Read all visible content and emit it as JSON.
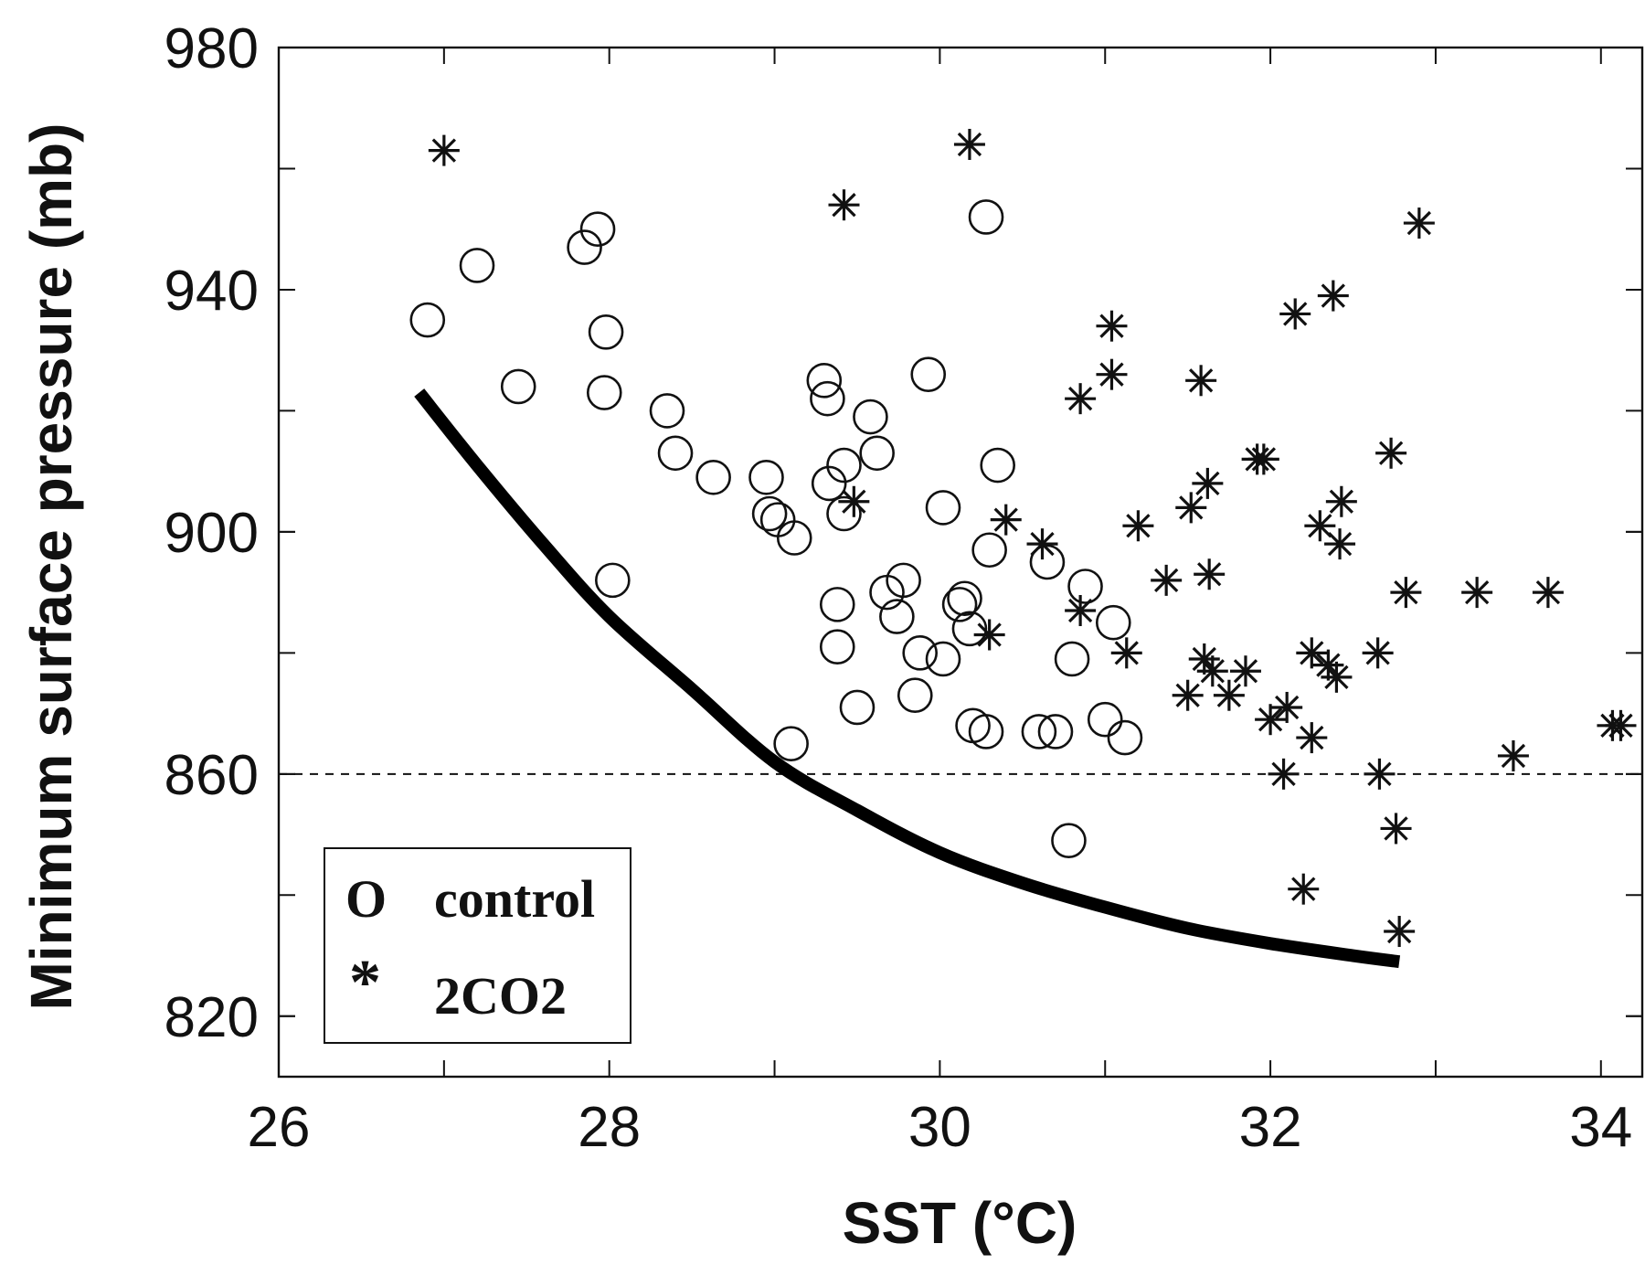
{
  "chart_data": {
    "type": "scatter",
    "xlabel": "SST (°C)",
    "ylabel": "Minimum surface pressure (mb)",
    "xlim": [
      26,
      34.25
    ],
    "ylim": [
      810,
      980
    ],
    "xticks": [
      26,
      28,
      30,
      32,
      34
    ],
    "yticks": [
      820,
      860,
      900,
      940,
      980
    ],
    "grid": false,
    "legend_position": "bottom-left",
    "reference_line": {
      "y": 860,
      "style": "dashed"
    },
    "curve": {
      "style": "thick solid",
      "points": [
        [
          26.85,
          923
        ],
        [
          27.2,
          911
        ],
        [
          27.6,
          898
        ],
        [
          28.0,
          886
        ],
        [
          28.5,
          874
        ],
        [
          29.0,
          862
        ],
        [
          29.5,
          854
        ],
        [
          30.0,
          847
        ],
        [
          30.5,
          842
        ],
        [
          31.0,
          838
        ],
        [
          31.5,
          834.5
        ],
        [
          32.0,
          832
        ],
        [
          32.5,
          830
        ],
        [
          32.78,
          829
        ]
      ]
    },
    "series": [
      {
        "name": "control",
        "legend_symbol": "O",
        "marker": "open-circle",
        "points": [
          [
            26.9,
            935
          ],
          [
            27.2,
            944
          ],
          [
            27.45,
            924
          ],
          [
            27.85,
            947
          ],
          [
            27.93,
            950
          ],
          [
            27.97,
            923
          ],
          [
            27.98,
            933
          ],
          [
            28.02,
            892
          ],
          [
            28.35,
            920
          ],
          [
            28.4,
            913
          ],
          [
            28.63,
            909
          ],
          [
            28.95,
            909
          ],
          [
            28.97,
            903
          ],
          [
            29.02,
            902
          ],
          [
            29.12,
            899
          ],
          [
            29.1,
            865
          ],
          [
            29.3,
            925
          ],
          [
            29.32,
            922
          ],
          [
            29.33,
            908
          ],
          [
            29.38,
            888
          ],
          [
            29.38,
            881
          ],
          [
            29.42,
            911
          ],
          [
            29.42,
            903
          ],
          [
            29.5,
            871
          ],
          [
            29.58,
            919
          ],
          [
            29.62,
            913
          ],
          [
            29.68,
            890
          ],
          [
            29.74,
            886
          ],
          [
            29.78,
            892
          ],
          [
            29.85,
            873
          ],
          [
            29.88,
            880
          ],
          [
            29.93,
            926
          ],
          [
            30.02,
            879
          ],
          [
            30.02,
            904
          ],
          [
            30.12,
            888
          ],
          [
            30.15,
            889
          ],
          [
            30.18,
            884
          ],
          [
            30.2,
            868
          ],
          [
            30.28,
            867
          ],
          [
            30.28,
            952
          ],
          [
            30.3,
            897
          ],
          [
            30.35,
            911
          ],
          [
            30.6,
            867
          ],
          [
            30.65,
            895
          ],
          [
            30.7,
            867
          ],
          [
            30.78,
            849
          ],
          [
            30.8,
            879
          ],
          [
            30.88,
            891
          ],
          [
            31.0,
            869
          ],
          [
            31.05,
            885
          ],
          [
            31.12,
            866
          ]
        ]
      },
      {
        "name": "2CO2",
        "legend_symbol": "*",
        "marker": "asterisk",
        "points": [
          [
            27.0,
            963
          ],
          [
            29.42,
            954
          ],
          [
            29.48,
            905
          ],
          [
            30.18,
            964
          ],
          [
            30.3,
            883
          ],
          [
            30.4,
            902
          ],
          [
            30.62,
            898
          ],
          [
            30.85,
            922
          ],
          [
            30.85,
            887
          ],
          [
            31.04,
            934
          ],
          [
            31.04,
            926
          ],
          [
            31.13,
            880
          ],
          [
            31.2,
            901
          ],
          [
            31.37,
            892
          ],
          [
            31.5,
            873
          ],
          [
            31.52,
            904
          ],
          [
            31.58,
            925
          ],
          [
            31.6,
            879
          ],
          [
            31.62,
            908
          ],
          [
            31.63,
            893
          ],
          [
            31.65,
            877
          ],
          [
            31.75,
            873
          ],
          [
            31.85,
            877
          ],
          [
            31.92,
            912
          ],
          [
            31.96,
            912
          ],
          [
            32.0,
            869
          ],
          [
            32.08,
            860
          ],
          [
            32.1,
            871
          ],
          [
            32.15,
            936
          ],
          [
            32.2,
            841
          ],
          [
            32.25,
            880
          ],
          [
            32.25,
            866
          ],
          [
            32.3,
            901
          ],
          [
            32.35,
            878
          ],
          [
            32.38,
            939
          ],
          [
            32.4,
            876
          ],
          [
            32.42,
            898
          ],
          [
            32.43,
            905
          ],
          [
            32.65,
            880
          ],
          [
            32.66,
            860
          ],
          [
            32.73,
            913
          ],
          [
            32.76,
            851
          ],
          [
            32.78,
            834
          ],
          [
            32.82,
            890
          ],
          [
            32.9,
            951
          ],
          [
            33.25,
            890
          ],
          [
            33.47,
            863
          ],
          [
            33.68,
            890
          ],
          [
            34.07,
            868
          ],
          [
            34.12,
            868
          ]
        ]
      }
    ]
  }
}
